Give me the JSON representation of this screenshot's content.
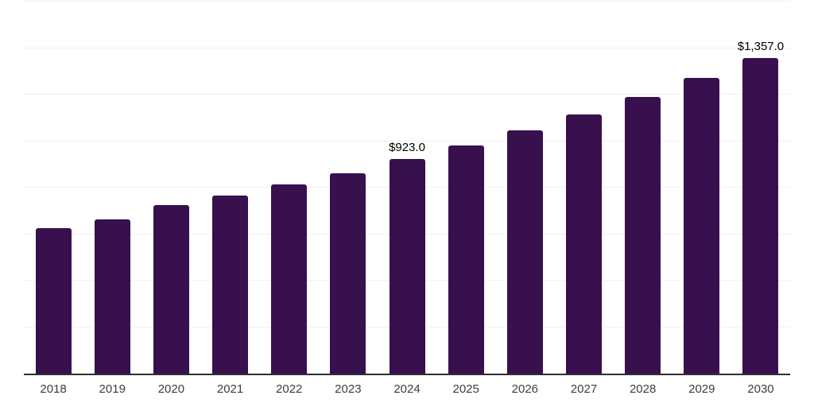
{
  "chart_data": {
    "type": "bar",
    "title": "",
    "xlabel": "",
    "ylabel": "",
    "categories": [
      "2018",
      "2019",
      "2020",
      "2021",
      "2022",
      "2023",
      "2024",
      "2025",
      "2026",
      "2027",
      "2028",
      "2029",
      "2030"
    ],
    "values": [
      626,
      665,
      724,
      766,
      813,
      863,
      923,
      981,
      1046,
      1114,
      1190,
      1273,
      1357
    ],
    "data_labels": [
      null,
      null,
      null,
      null,
      null,
      null,
      "$923.0",
      null,
      null,
      null,
      null,
      null,
      "$1,357.0"
    ],
    "ylim": [
      0,
      1600
    ],
    "gridline_step": 200,
    "grid": "horizontal",
    "legend": "none",
    "y_axis_labels_visible": false,
    "colors": {
      "bar": "#37104d",
      "gridline": "#f0f0f0",
      "axis_line": "#2f2f2f",
      "tick_label": "#3d3d3d",
      "data_label": "#000000",
      "background": "#ffffff"
    }
  }
}
